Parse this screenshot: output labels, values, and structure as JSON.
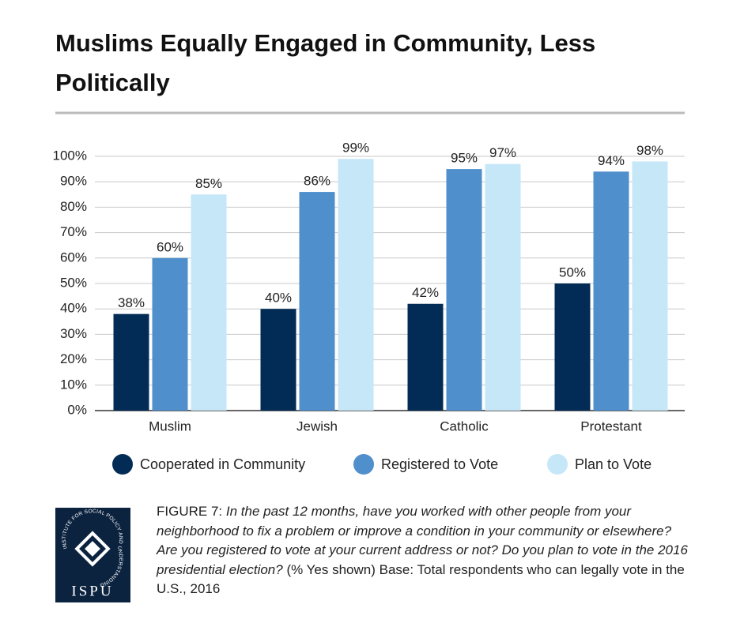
{
  "chart_data": {
    "type": "bar",
    "title": "Muslims Equally Engaged in Community, Less Politically",
    "categories": [
      "Muslim",
      "Jewish",
      "Catholic",
      "Protestant"
    ],
    "series": [
      {
        "name": "Cooperated in Community",
        "color": "#022c56",
        "values": [
          38,
          40,
          42,
          50
        ],
        "value_labels": [
          "38%",
          "40%",
          "42%",
          "50%"
        ]
      },
      {
        "name": "Registered to Vote",
        "color": "#4f8fcc",
        "values": [
          60,
          86,
          95,
          94
        ],
        "value_labels": [
          "60%",
          "86%",
          "95%",
          "94%"
        ]
      },
      {
        "name": "Plan to Vote",
        "color": "#c6e7f8",
        "values": [
          85,
          99,
          97,
          98
        ],
        "value_labels": [
          "85%",
          "99%",
          "97%",
          "98%"
        ]
      }
    ],
    "ylim": [
      0,
      100
    ],
    "yticks": [
      {
        "value": 0,
        "label": "0%"
      },
      {
        "value": 10,
        "label": "10%"
      },
      {
        "value": 20,
        "label": "20%"
      },
      {
        "value": 30,
        "label": "30%"
      },
      {
        "value": 40,
        "label": "40%"
      },
      {
        "value": 50,
        "label": "50%"
      },
      {
        "value": 60,
        "label": "60%"
      },
      {
        "value": 70,
        "label": "70%"
      },
      {
        "value": 80,
        "label": "80%"
      },
      {
        "value": 90,
        "label": "90%"
      },
      {
        "value": 100,
        "label": "100%"
      }
    ],
    "grid": true
  },
  "caption": {
    "figure": "FIGURE 7:",
    "question": "In the past 12 months, have you worked with other people from your neighborhood to fix a problem or improve a condition in your community or elsewhere? Are you registered to vote at your current address or not? Do you plan to vote in the 2016 presidential election?",
    "note": "(% Yes shown) Base: Total respondents who can legally vote in the U.S., 2016"
  },
  "logo": {
    "ring": "INSTITUTE FOR SOCIAL POLICY AND UNDERSTANDING",
    "name": "ISPU"
  }
}
